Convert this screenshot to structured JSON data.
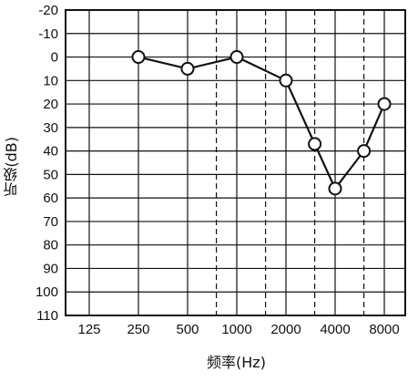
{
  "chart_data": {
    "type": "line",
    "ylabel": "听级(dB)",
    "xlabel": "频率(Hz)",
    "y_reversed": true,
    "ylim": [
      -20,
      110
    ],
    "yticks": [
      -20,
      -10,
      0,
      10,
      20,
      30,
      40,
      50,
      60,
      70,
      80,
      90,
      100,
      110
    ],
    "xticks": [
      "125",
      "250",
      "500",
      "1000",
      "2000",
      "4000",
      "8000"
    ],
    "x_scale": "log2 (octaves)",
    "half_octave_gridlines": "dashed",
    "grid": true,
    "marker": "open-circle",
    "color": "#111111",
    "series": [
      {
        "x": [
          250,
          500,
          1000,
          2000,
          3000,
          4000,
          6000,
          8000
        ],
        "y": [
          0,
          5,
          0,
          10,
          37,
          56,
          40,
          20
        ]
      }
    ]
  }
}
